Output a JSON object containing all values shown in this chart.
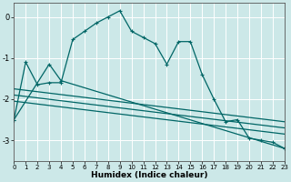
{
  "xlabel": "Humidex (Indice chaleur)",
  "ylabel": "",
  "bg_color": "#cce8e8",
  "grid_color": "#ffffff",
  "line_color": "#006666",
  "xlim": [
    0,
    23
  ],
  "ylim": [
    -3.5,
    0.35
  ],
  "yticks": [
    0,
    -1,
    -2,
    -3
  ],
  "xticks": [
    0,
    1,
    2,
    3,
    4,
    5,
    6,
    7,
    8,
    9,
    10,
    11,
    12,
    13,
    14,
    15,
    16,
    17,
    18,
    19,
    20,
    21,
    22,
    23
  ],
  "line1_x": [
    0,
    1,
    2,
    3,
    4,
    5,
    6,
    7,
    8,
    9,
    10,
    11,
    12,
    13,
    14,
    15,
    16,
    17,
    18,
    19,
    20,
    21,
    22,
    23
  ],
  "line1_y": [
    -2.5,
    -1.1,
    -1.65,
    -1.6,
    -1.6,
    -0.55,
    -0.35,
    -0.15,
    0.0,
    0.15,
    -0.35,
    -0.5,
    -0.65,
    -1.15,
    -0.6,
    -0.6,
    -1.4,
    -2.0,
    -2.55,
    -2.5,
    -2.95,
    -3.0,
    -3.05,
    -3.2
  ],
  "line2_x": [
    0,
    3,
    4,
    23
  ],
  "line2_y": [
    -2.5,
    -1.15,
    -1.55,
    -3.2
  ],
  "line3_x": [
    0,
    23
  ],
  "line3_y": [
    -1.75,
    -2.55
  ],
  "line4_x": [
    0,
    23
  ],
  "line4_y": [
    -1.9,
    -2.7
  ],
  "line5_x": [
    0,
    23
  ],
  "line5_y": [
    -2.05,
    -2.85
  ],
  "marker": "+"
}
